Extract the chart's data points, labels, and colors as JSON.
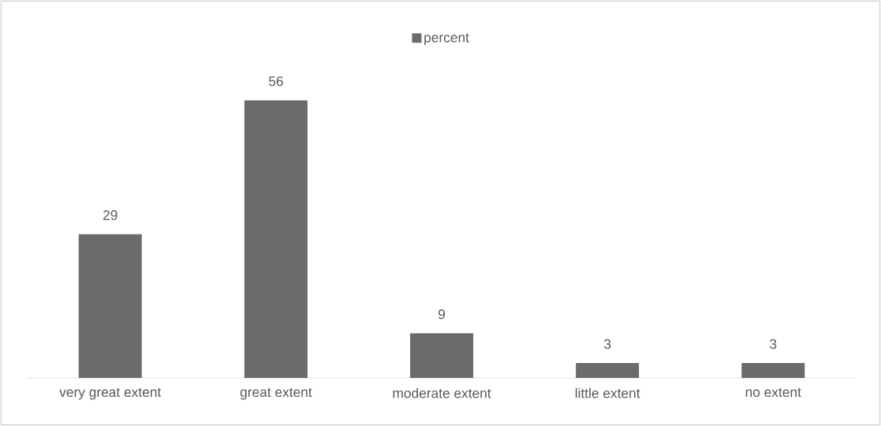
{
  "chart_data": {
    "type": "bar",
    "categories": [
      "very great extent",
      "great extent",
      "moderate extent",
      "little extent",
      "no extent"
    ],
    "series": [
      {
        "name": "percent",
        "color": "#6b6b6b",
        "values": [
          29,
          56,
          9,
          3,
          3
        ]
      }
    ],
    "data_labels": true,
    "legend": "top"
  }
}
